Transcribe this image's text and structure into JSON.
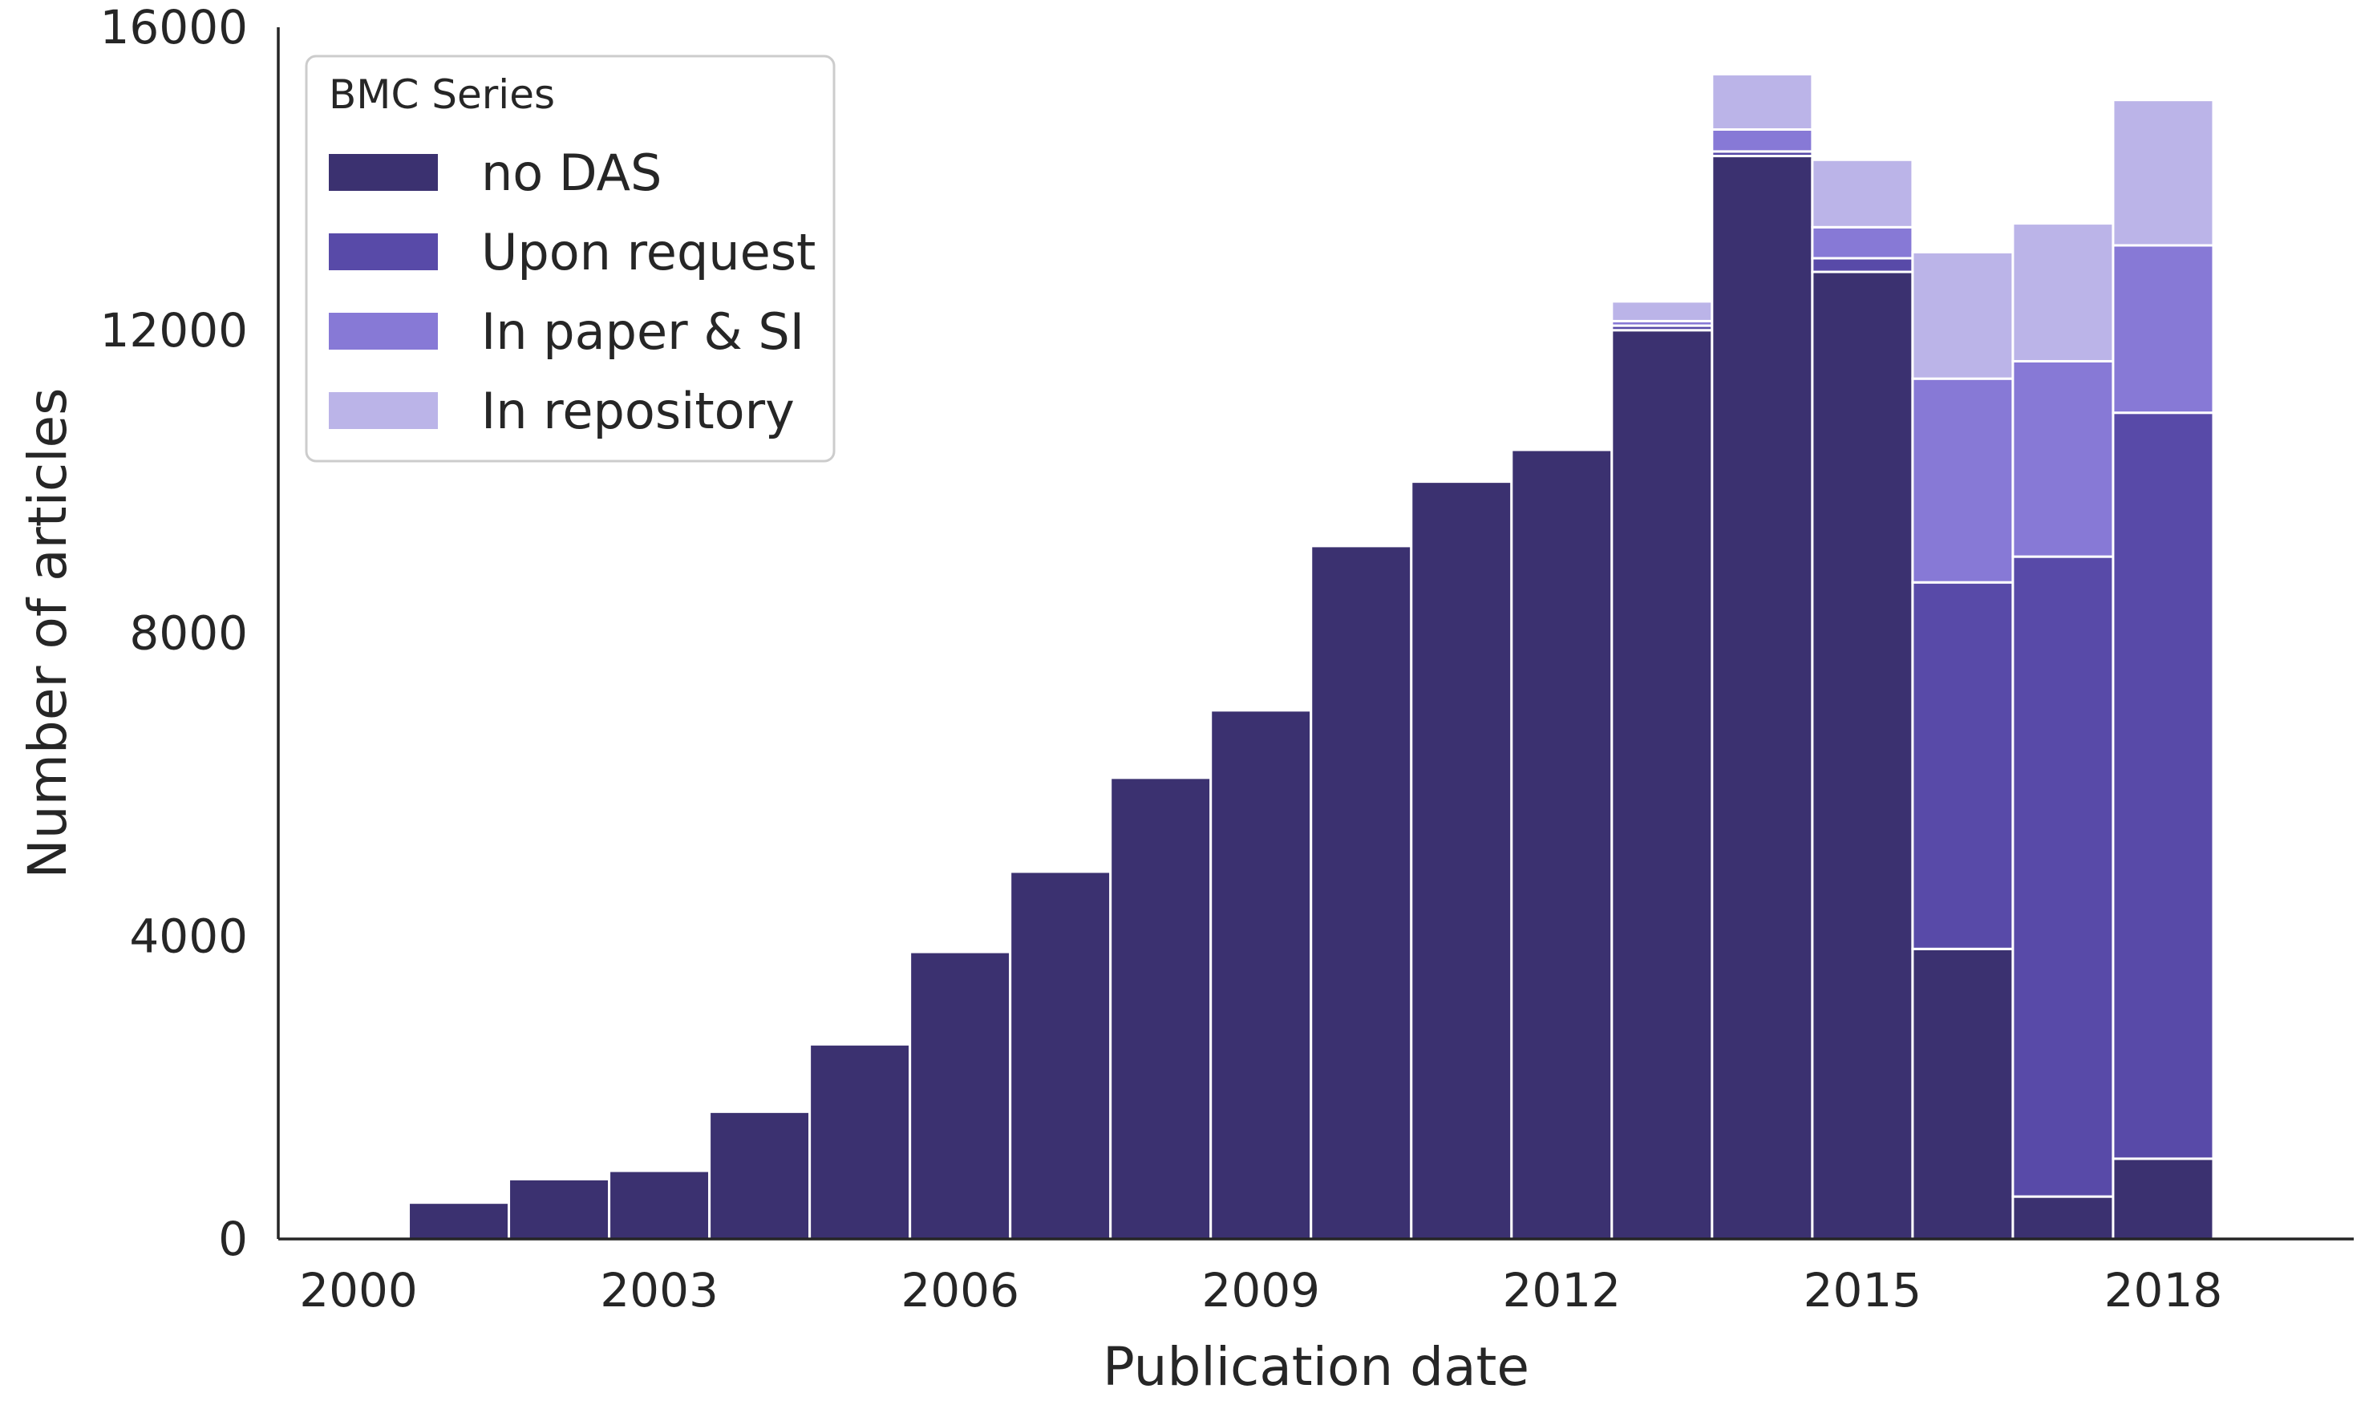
{
  "chart_data": {
    "type": "bar",
    "stacked": true,
    "title": "",
    "xlabel": "Publication date",
    "ylabel": "Number of articles",
    "ylim": [
      0,
      16000
    ],
    "xlim": [
      1999.2,
      2019.9
    ],
    "yticks": [
      0,
      4000,
      8000,
      12000,
      16000
    ],
    "xticks": [
      2000,
      2003,
      2006,
      2009,
      2012,
      2015,
      2018
    ],
    "grid": false,
    "legend": {
      "title": "BMC Series",
      "placement": "top-left",
      "entries": [
        "no DAS",
        "Upon request",
        "In paper & SI",
        "In repository"
      ]
    },
    "categories": [
      2000,
      2001,
      2002,
      2003,
      2004,
      2005,
      2006,
      2007,
      2008,
      2009,
      2010,
      2011,
      2012,
      2013,
      2014,
      2015,
      2016,
      2017,
      2018
    ],
    "series": [
      {
        "name": "no DAS",
        "color": "#3b3170",
        "values": [
          0,
          480,
          790,
          900,
          1680,
          2570,
          3790,
          4850,
          6090,
          6980,
          9150,
          10000,
          10420,
          12000,
          14300,
          12770,
          3830,
          560,
          1060
        ]
      },
      {
        "name": "Upon request",
        "color": "#584aa8",
        "values": [
          0,
          0,
          0,
          0,
          0,
          0,
          0,
          0,
          0,
          0,
          0,
          0,
          0,
          60,
          60,
          180,
          4840,
          8450,
          9850
        ]
      },
      {
        "name": "In paper & SI",
        "color": "#8779d6",
        "values": [
          0,
          0,
          0,
          0,
          0,
          0,
          0,
          0,
          0,
          0,
          0,
          0,
          0,
          60,
          290,
          410,
          2690,
          2580,
          2210
        ]
      },
      {
        "name": "In repository",
        "color": "#bbb4e8",
        "values": [
          0,
          0,
          0,
          0,
          0,
          0,
          0,
          0,
          0,
          0,
          0,
          0,
          0,
          260,
          730,
          890,
          1670,
          1820,
          1920
        ]
      }
    ]
  }
}
